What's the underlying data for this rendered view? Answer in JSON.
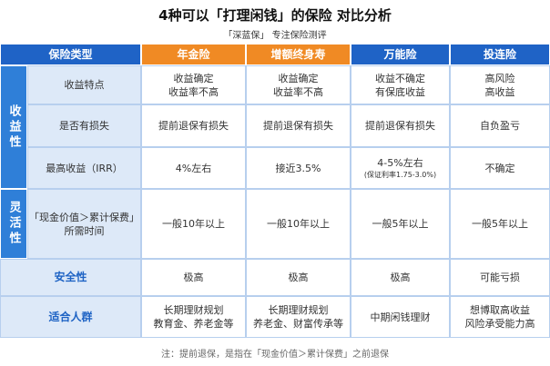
{
  "title": "4种可以「打理闲钱」的保险 对比分析",
  "subtitle": "「深蓝保」 专注保险测评",
  "table": {
    "header": [
      "保险类型",
      "年金险",
      "增额终身寿",
      "万能险",
      "投连险"
    ],
    "sections": [
      {
        "name": "收益性",
        "rows": [
          {
            "label": [
              "收益特点"
            ],
            "cells": [
              [
                "收益确定",
                "收益率不高"
              ],
              [
                "收益确定",
                "收益率不高"
              ],
              [
                "收益不确定",
                "有保底收益"
              ],
              [
                "高风险",
                "高收益"
              ]
            ]
          },
          {
            "label": [
              "是否有损失"
            ],
            "cells": [
              [
                "提前退保有损失"
              ],
              [
                "提前退保有损失"
              ],
              [
                "提前退保有损失"
              ],
              [
                "自负盈亏"
              ]
            ]
          },
          {
            "label": [
              "最高收益（IRR）"
            ],
            "cells": [
              [
                "4%左右"
              ],
              [
                "接近3.5%"
              ],
              [
                "4-5%左右",
                "(保证利率1.75-3.0%)"
              ],
              [
                "不确定"
              ]
            ]
          }
        ]
      },
      {
        "name": "灵活性",
        "rows": [
          {
            "label": [
              "「现金价值＞累计保费」",
              "所需时间"
            ],
            "cells": [
              [
                "一般10年以上"
              ],
              [
                "一般10年以上"
              ],
              [
                "一般5年以上"
              ],
              [
                "一般5年以上"
              ]
            ]
          }
        ]
      },
      {
        "rows": [
          {
            "label": [
              "安全性"
            ],
            "cells": [
              [
                "极高"
              ],
              [
                "极高"
              ],
              [
                "极高"
              ],
              [
                "可能亏损"
              ]
            ]
          },
          {
            "label": [
              "适合人群"
            ],
            "cells": [
              [
                "长期理财规划",
                "教育金、养老金等"
              ],
              [
                "长期理财规划",
                "养老金、财富传承等"
              ],
              [
                "中期闲钱理财"
              ],
              [
                "想博取高收益",
                "风险承受能力高"
              ]
            ]
          }
        ]
      }
    ]
  },
  "footnote": "注：提前退保，是指在「现金价值＞累计保费」之前退保"
}
